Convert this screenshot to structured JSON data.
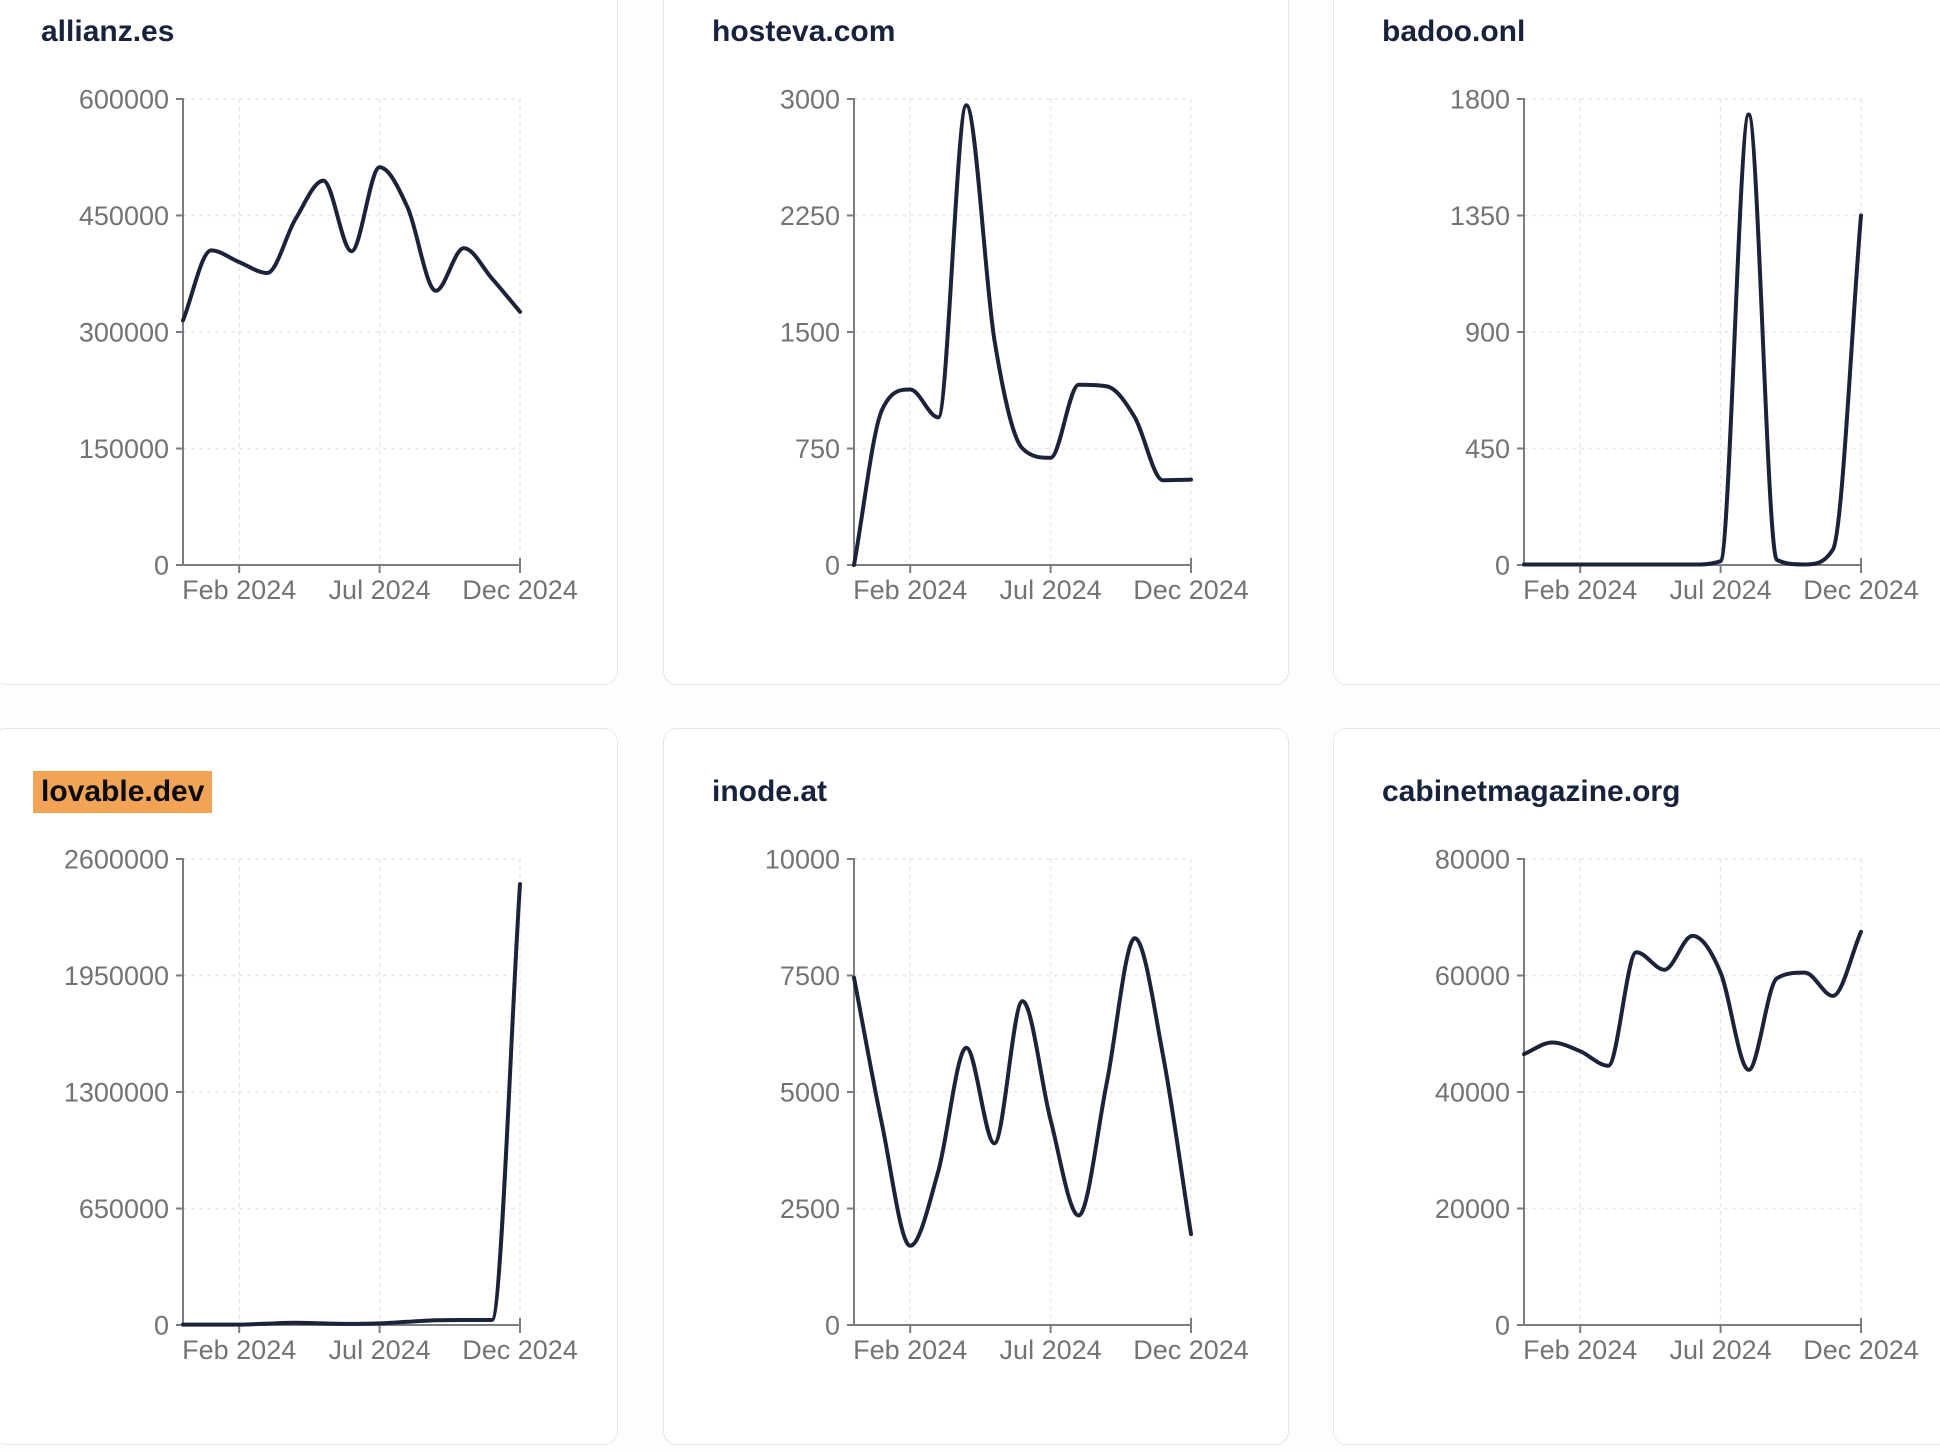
{
  "theme": {
    "page_background": "#fdfdfe",
    "card_background": "#ffffff",
    "card_border_color": "#e3e8f0",
    "title_color": "#18223c",
    "highlight_color": "#f1a455",
    "line_color": "#1c2339",
    "axis_color": "#7a7d81",
    "grid_color": "#e8e9ec",
    "tick_label_color": "#717476"
  },
  "x_axis": {
    "tick_labels": [
      "Feb 2024",
      "Jul 2024",
      "Dec 2024"
    ],
    "tick_month_indices": [
      2,
      7,
      12
    ]
  },
  "chart_data": [
    {
      "type": "line",
      "title": "allianz.es",
      "title_highlight": false,
      "x": [
        "Dec 2023",
        "Jan 2024",
        "Feb 2024",
        "Mar 2024",
        "Apr 2024",
        "May 2024",
        "Jun 2024",
        "Jul 2024",
        "Aug 2024",
        "Sep 2024",
        "Oct 2024",
        "Nov 2024",
        "Dec 2024"
      ],
      "values": [
        315000,
        405000,
        390000,
        376000,
        445000,
        495000,
        404000,
        512000,
        460000,
        353000,
        408000,
        369000,
        326000
      ],
      "ylim": [
        0,
        600000
      ],
      "y_ticks": [
        0,
        150000,
        300000,
        450000,
        600000
      ],
      "x_tick_labels": [
        "Feb 2024",
        "Jul 2024",
        "Dec 2024"
      ],
      "grid": true,
      "legend": false
    },
    {
      "type": "line",
      "title": "hosteva.com",
      "title_highlight": false,
      "x": [
        "Dec 2023",
        "Jan 2024",
        "Feb 2024",
        "Mar 2024",
        "Apr 2024",
        "May 2024",
        "Jun 2024",
        "Jul 2024",
        "Aug 2024",
        "Sep 2024",
        "Oct 2024",
        "Nov 2024",
        "Dec 2024"
      ],
      "values": [
        0,
        1000,
        1130,
        950,
        2960,
        1450,
        750,
        690,
        1160,
        1150,
        950,
        545,
        550
      ],
      "ylim": [
        0,
        3000
      ],
      "y_ticks": [
        0,
        750,
        1500,
        2250,
        3000
      ],
      "x_tick_labels": [
        "Feb 2024",
        "Jul 2024",
        "Dec 2024"
      ],
      "grid": true,
      "legend": false
    },
    {
      "type": "line",
      "title": "badoo.onl",
      "title_highlight": false,
      "x": [
        "Dec 2023",
        "Jan 2024",
        "Feb 2024",
        "Mar 2024",
        "Apr 2024",
        "May 2024",
        "Jun 2024",
        "Jul 2024",
        "Aug 2024",
        "Sep 2024",
        "Oct 2024",
        "Nov 2024",
        "Dec 2024"
      ],
      "values": [
        2,
        2,
        2,
        2,
        2,
        2,
        2,
        15,
        1740,
        20,
        2,
        60,
        1350
      ],
      "ylim": [
        0,
        1800
      ],
      "y_ticks": [
        0,
        450,
        900,
        1350,
        1800
      ],
      "x_tick_labels": [
        "Feb 2024",
        "Jul 2024",
        "Dec 2024"
      ],
      "grid": true,
      "legend": false
    },
    {
      "type": "line",
      "title": "lovable.dev",
      "title_highlight": true,
      "x": [
        "Dec 2023",
        "Jan 2024",
        "Feb 2024",
        "Mar 2024",
        "Apr 2024",
        "May 2024",
        "Jun 2024",
        "Jul 2024",
        "Aug 2024",
        "Sep 2024",
        "Oct 2024",
        "Nov 2024",
        "Dec 2024"
      ],
      "values": [
        2000,
        2000,
        2000,
        8000,
        12000,
        9000,
        6000,
        9000,
        18000,
        26000,
        28000,
        28000,
        2460000
      ],
      "ylim": [
        0,
        2600000
      ],
      "y_ticks": [
        0,
        650000,
        1300000,
        1950000,
        2600000
      ],
      "x_tick_labels": [
        "Feb 2024",
        "Jul 2024",
        "Dec 2024"
      ],
      "grid": true,
      "legend": false
    },
    {
      "type": "line",
      "title": "inode.at",
      "title_highlight": false,
      "x": [
        "Dec 2023",
        "Jan 2024",
        "Feb 2024",
        "Mar 2024",
        "Apr 2024",
        "May 2024",
        "Jun 2024",
        "Jul 2024",
        "Aug 2024",
        "Sep 2024",
        "Oct 2024",
        "Nov 2024",
        "Dec 2024"
      ],
      "values": [
        7450,
        4300,
        1700,
        3300,
        5950,
        3900,
        6950,
        4400,
        2350,
        5200,
        8300,
        5800,
        1950
      ],
      "ylim": [
        0,
        10000
      ],
      "y_ticks": [
        0,
        2500,
        5000,
        7500,
        10000
      ],
      "x_tick_labels": [
        "Feb 2024",
        "Jul 2024",
        "Dec 2024"
      ],
      "grid": true,
      "legend": false
    },
    {
      "type": "line",
      "title": "cabinetmagazine.org",
      "title_highlight": false,
      "x": [
        "Dec 2023",
        "Jan 2024",
        "Feb 2024",
        "Mar 2024",
        "Apr 2024",
        "May 2024",
        "Jun 2024",
        "Jul 2024",
        "Aug 2024",
        "Sep 2024",
        "Oct 2024",
        "Nov 2024",
        "Dec 2024"
      ],
      "values": [
        46500,
        48500,
        47000,
        44500,
        64000,
        61000,
        66800,
        60500,
        43800,
        59500,
        60500,
        56500,
        67500
      ],
      "ylim": [
        0,
        80000
      ],
      "y_ticks": [
        0,
        20000,
        40000,
        60000,
        80000
      ],
      "x_tick_labels": [
        "Feb 2024",
        "Jul 2024",
        "Dec 2024"
      ],
      "grid": true,
      "legend": false
    }
  ]
}
